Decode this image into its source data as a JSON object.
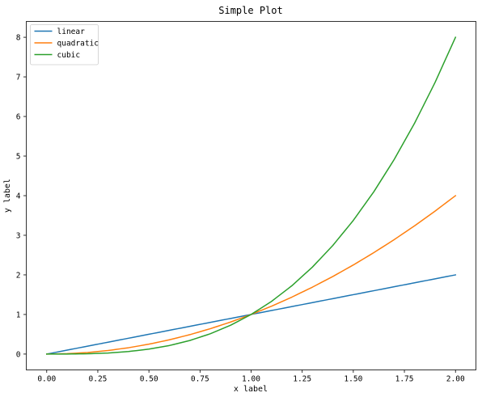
{
  "chart_data": {
    "type": "line",
    "title": "Simple Plot",
    "xlabel": "x label",
    "ylabel": "y label",
    "xlim": [
      -0.1,
      2.1
    ],
    "ylim": [
      -0.4,
      8.4
    ],
    "xticks": [
      0.0,
      0.25,
      0.5,
      0.75,
      1.0,
      1.25,
      1.5,
      1.75,
      2.0
    ],
    "xtick_labels": [
      "0.00",
      "0.25",
      "0.50",
      "0.75",
      "1.00",
      "1.25",
      "1.50",
      "1.75",
      "2.00"
    ],
    "yticks": [
      0,
      1,
      2,
      3,
      4,
      5,
      6,
      7,
      8
    ],
    "ytick_labels": [
      "0",
      "1",
      "2",
      "3",
      "4",
      "5",
      "6",
      "7",
      "8"
    ],
    "grid": false,
    "legend_position": "top-left",
    "x": [
      0.0,
      0.1,
      0.2,
      0.3,
      0.4,
      0.5,
      0.6,
      0.7,
      0.8,
      0.9,
      1.0,
      1.1,
      1.2,
      1.3,
      1.4,
      1.5,
      1.6,
      1.7,
      1.8,
      1.9,
      2.0
    ],
    "series": [
      {
        "name": "linear",
        "color": "#1f77b4",
        "values": [
          0.0,
          0.1,
          0.2,
          0.3,
          0.4,
          0.5,
          0.6,
          0.7,
          0.8,
          0.9,
          1.0,
          1.1,
          1.2,
          1.3,
          1.4,
          1.5,
          1.6,
          1.7,
          1.8,
          1.9,
          2.0
        ]
      },
      {
        "name": "quadratic",
        "color": "#ff7f0e",
        "values": [
          0.0,
          0.01,
          0.04,
          0.09,
          0.16,
          0.25,
          0.36,
          0.49,
          0.64,
          0.81,
          1.0,
          1.21,
          1.44,
          1.69,
          1.96,
          2.25,
          2.56,
          2.89,
          3.24,
          3.61,
          4.0
        ]
      },
      {
        "name": "cubic",
        "color": "#2ca02c",
        "values": [
          0.0,
          0.001,
          0.008,
          0.027,
          0.064,
          0.125,
          0.216,
          0.343,
          0.512,
          0.729,
          1.0,
          1.331,
          1.728,
          2.197,
          2.744,
          3.375,
          4.096,
          4.913,
          5.832,
          6.859,
          8.0
        ]
      }
    ]
  }
}
